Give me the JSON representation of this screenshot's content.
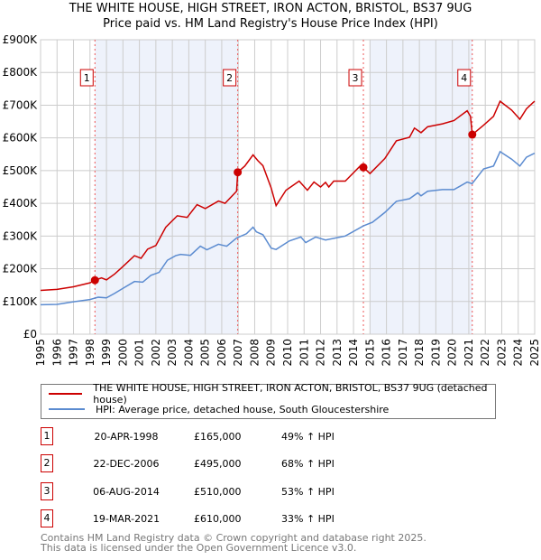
{
  "title": "THE WHITE HOUSE, HIGH STREET, IRON ACTON, BRISTOL, BS37 9UG",
  "subtitle": "Price paid vs. HM Land Registry's House Price Index (HPI)",
  "colors": {
    "property": "#cc0000",
    "hpi": "#5b8bd0",
    "shade": "#eef2fb",
    "marker": "#cc0000"
  },
  "chart_data": {
    "type": "line",
    "title": "THE WHITE HOUSE, HIGH STREET, IRON ACTON, BRISTOL, BS37 9UG",
    "subtitle": "Price paid vs. HM Land Registry's House Price Index (HPI)",
    "xlim": [
      1995,
      2025
    ],
    "ylim": [
      0,
      900000
    ],
    "x_ticks": [
      "1995",
      "1996",
      "1997",
      "1998",
      "1999",
      "2000",
      "2001",
      "2002",
      "2003",
      "2004",
      "2005",
      "2006",
      "2007",
      "2008",
      "2009",
      "2010",
      "2011",
      "2012",
      "2013",
      "2014",
      "2015",
      "2016",
      "2017",
      "2018",
      "2019",
      "2020",
      "2021",
      "2022",
      "2023",
      "2024",
      "2025"
    ],
    "y_ticks": [
      {
        "v": 0,
        "label": "£0"
      },
      {
        "v": 100000,
        "label": "£100K"
      },
      {
        "v": 200000,
        "label": "£200K"
      },
      {
        "v": 300000,
        "label": "£300K"
      },
      {
        "v": 400000,
        "label": "£400K"
      },
      {
        "v": 500000,
        "label": "£500K"
      },
      {
        "v": 600000,
        "label": "£600K"
      },
      {
        "v": 700000,
        "label": "£700K"
      },
      {
        "v": 800000,
        "label": "£800K"
      },
      {
        "v": 900000,
        "label": "£900K"
      }
    ],
    "grid": true,
    "series": [
      {
        "name": "THE WHITE HOUSE, HIGH STREET, IRON ACTON, BRISTOL, BS37 9UG (detached house)",
        "points": [
          [
            1995,
            134
          ],
          [
            1996,
            137
          ],
          [
            1997,
            145
          ],
          [
            1998,
            157
          ],
          [
            1998.3,
            165
          ],
          [
            1998.7,
            172
          ],
          [
            1999,
            166
          ],
          [
            1999.5,
            184
          ],
          [
            2000,
            207
          ],
          [
            2000.7,
            240
          ],
          [
            2001.1,
            232
          ],
          [
            2001.5,
            260
          ],
          [
            2002,
            271
          ],
          [
            2002.6,
            327
          ],
          [
            2003.3,
            362
          ],
          [
            2003.9,
            357
          ],
          [
            2004.5,
            396
          ],
          [
            2005,
            384
          ],
          [
            2005.8,
            407
          ],
          [
            2006.2,
            400
          ],
          [
            2006.9,
            437
          ],
          [
            2006.97,
            495
          ],
          [
            2007.4,
            514
          ],
          [
            2007.9,
            548
          ],
          [
            2008.2,
            530
          ],
          [
            2008.5,
            515
          ],
          [
            2009,
            447
          ],
          [
            2009.3,
            393
          ],
          [
            2009.9,
            440
          ],
          [
            2010.7,
            468
          ],
          [
            2011.2,
            440
          ],
          [
            2011.6,
            465
          ],
          [
            2012,
            450
          ],
          [
            2012.3,
            464
          ],
          [
            2012.5,
            450
          ],
          [
            2012.8,
            468
          ],
          [
            2013.5,
            468
          ],
          [
            2014.4,
            514
          ],
          [
            2014.58,
            520
          ],
          [
            2014.6,
            510
          ],
          [
            2015,
            491
          ],
          [
            2015.9,
            537
          ],
          [
            2016.6,
            591
          ],
          [
            2017.4,
            602
          ],
          [
            2017.7,
            630
          ],
          [
            2018.1,
            616
          ],
          [
            2018.5,
            634
          ],
          [
            2019.4,
            643
          ],
          [
            2020.1,
            653
          ],
          [
            2020.9,
            683
          ],
          [
            2021.1,
            666
          ],
          [
            2021.21,
            610
          ],
          [
            2021.9,
            639
          ],
          [
            2022.5,
            666
          ],
          [
            2022.9,
            712
          ],
          [
            2023.6,
            685
          ],
          [
            2024.1,
            657
          ],
          [
            2024.5,
            689
          ],
          [
            2024.9,
            708
          ],
          [
            2025,
            712
          ]
        ]
      },
      {
        "name": "HPI: Average price, detached house, South Gloucestershire",
        "points": [
          [
            1995,
            90
          ],
          [
            1996,
            91
          ],
          [
            1997,
            99
          ],
          [
            1998,
            106
          ],
          [
            1998.5,
            113
          ],
          [
            1999,
            111
          ],
          [
            1999.5,
            125
          ],
          [
            2000,
            140
          ],
          [
            2000.7,
            161
          ],
          [
            2001.2,
            159
          ],
          [
            2001.7,
            180
          ],
          [
            2002.2,
            189
          ],
          [
            2002.7,
            226
          ],
          [
            2003.2,
            240
          ],
          [
            2003.5,
            244
          ],
          [
            2004.1,
            241
          ],
          [
            2004.7,
            269
          ],
          [
            2005.1,
            258
          ],
          [
            2005.8,
            275
          ],
          [
            2006.3,
            269
          ],
          [
            2006.9,
            294
          ],
          [
            2007.5,
            307
          ],
          [
            2007.9,
            327
          ],
          [
            2008.1,
            313
          ],
          [
            2008.5,
            304
          ],
          [
            2009,
            263
          ],
          [
            2009.3,
            259
          ],
          [
            2010.1,
            285
          ],
          [
            2010.8,
            297
          ],
          [
            2011.1,
            280
          ],
          [
            2011.7,
            297
          ],
          [
            2012.3,
            288
          ],
          [
            2013.5,
            300
          ],
          [
            2014.6,
            331
          ],
          [
            2015.15,
            342
          ],
          [
            2015.9,
            372
          ],
          [
            2016.6,
            406
          ],
          [
            2017.4,
            414
          ],
          [
            2017.9,
            432
          ],
          [
            2018.1,
            423
          ],
          [
            2018.5,
            437
          ],
          [
            2019.4,
            442
          ],
          [
            2020.1,
            442
          ],
          [
            2020.9,
            465
          ],
          [
            2021.2,
            460
          ],
          [
            2021.9,
            505
          ],
          [
            2022.5,
            514
          ],
          [
            2022.9,
            558
          ],
          [
            2023.6,
            535
          ],
          [
            2024.1,
            514
          ],
          [
            2024.5,
            541
          ],
          [
            2024.9,
            551
          ],
          [
            2025,
            553
          ]
        ]
      }
    ],
    "sales": [
      {
        "n": "1",
        "x": 1998.3,
        "y": 165000
      },
      {
        "n": "2",
        "x": 2006.97,
        "y": 495000
      },
      {
        "n": "3",
        "x": 2014.6,
        "y": 510000
      },
      {
        "n": "4",
        "x": 2021.21,
        "y": 610000
      }
    ],
    "shaded": [
      [
        1998.3,
        2006.97
      ],
      [
        2015.0,
        2021.21
      ]
    ],
    "legend_position": "below"
  },
  "legend": {
    "property": "THE WHITE HOUSE, HIGH STREET, IRON ACTON, BRISTOL, BS37 9UG (detached house)",
    "hpi": "HPI: Average price, detached house, South Gloucestershire"
  },
  "transactions": [
    {
      "n": "1",
      "date": "20-APR-1998",
      "price": "£165,000",
      "hpi": "49% ↑ HPI"
    },
    {
      "n": "2",
      "date": "22-DEC-2006",
      "price": "£495,000",
      "hpi": "68% ↑ HPI"
    },
    {
      "n": "3",
      "date": "06-AUG-2014",
      "price": "£510,000",
      "hpi": "53% ↑ HPI"
    },
    {
      "n": "4",
      "date": "19-MAR-2021",
      "price": "£610,000",
      "hpi": "33% ↑ HPI"
    }
  ],
  "footer": {
    "line1": "Contains HM Land Registry data © Crown copyright and database right 2025.",
    "line2": "This data is licensed under the Open Government Licence v3.0."
  }
}
